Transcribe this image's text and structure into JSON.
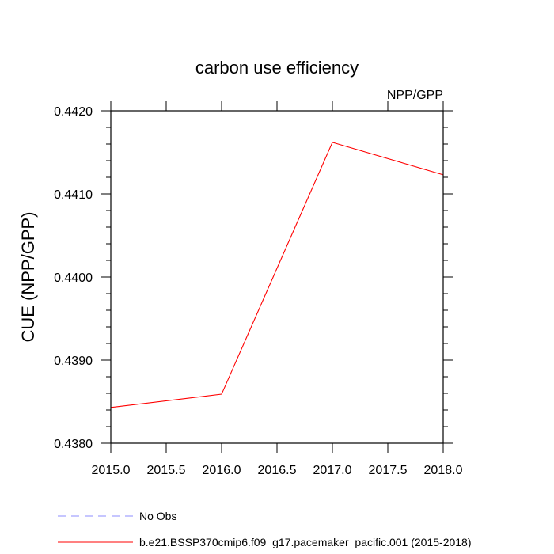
{
  "chart_data": {
    "type": "line",
    "title": "carbon use efficiency",
    "units_label": "NPP/GPP",
    "ylabel": "CUE  (NPP/GPP)",
    "xlabel": "",
    "xlim": [
      2015.0,
      2018.0
    ],
    "ylim": [
      0.438,
      0.442
    ],
    "x_ticks": [
      2015.0,
      2015.5,
      2016.0,
      2016.5,
      2017.0,
      2017.5,
      2018.0
    ],
    "x_tick_labels": [
      "2015.0",
      "2015.5",
      "2016.0",
      "2016.5",
      "2017.0",
      "2017.5",
      "2018.0"
    ],
    "y_ticks": [
      0.438,
      0.439,
      0.44,
      0.441,
      0.442
    ],
    "y_tick_labels": [
      "0.4380",
      "0.4390",
      "0.4400",
      "0.4410",
      "0.4420"
    ],
    "y_minor_step": 0.0002,
    "grid": false,
    "legend_placement": "bottom",
    "series": [
      {
        "name": "b.e21.BSSP370cmip6.f09_g17.pacemaker_pacific.001 (2015-2018)",
        "color": "#ff0000",
        "dash": "solid",
        "x": [
          2015.0,
          2016.0,
          2017.0,
          2018.0
        ],
        "y": [
          0.43843,
          0.43859,
          0.44162,
          0.44123
        ]
      }
    ],
    "legend": [
      {
        "label": "No Obs",
        "color": "#8c8cff",
        "dash": "dashed"
      },
      {
        "label": "b.e21.BSSP370cmip6.f09_g17.pacemaker_pacific.001 (2015-2018)",
        "color": "#ff0000",
        "dash": "solid"
      }
    ]
  }
}
